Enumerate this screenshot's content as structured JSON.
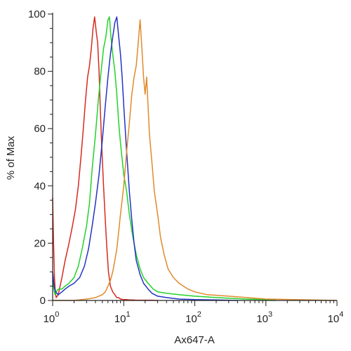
{
  "chart_data": {
    "type": "line",
    "title": "",
    "xlabel": "Ax647-A",
    "ylabel": "% of Max",
    "xscale": "log",
    "xlim": [
      1,
      10000
    ],
    "ylim": [
      0,
      100
    ],
    "grid": false,
    "legend": "none",
    "x_ticks": [
      {
        "base": "10",
        "exp": "0"
      },
      {
        "base": "10",
        "exp": "1"
      },
      {
        "base": "10",
        "exp": "2"
      },
      {
        "base": "10",
        "exp": "3"
      },
      {
        "base": "10",
        "exp": "4"
      }
    ],
    "y_ticks": [
      "0",
      "20",
      "40",
      "60",
      "80",
      "100"
    ],
    "series": [
      {
        "color": "#d62a1e",
        "x": [
          1.0,
          1.03,
          1.06,
          1.09,
          1.12,
          1.2,
          1.35,
          1.5,
          1.7,
          1.9,
          2.1,
          2.3,
          2.5,
          2.7,
          2.9,
          3.1,
          3.3,
          3.5,
          3.7,
          3.9,
          4.1,
          4.3,
          4.5,
          4.7,
          4.9,
          5.2,
          5.5,
          5.8,
          6.1,
          6.5,
          7.0,
          7.5,
          8.0,
          8.5,
          9.0,
          10.0,
          11.0,
          12.0,
          13.5,
          15.0,
          17.0,
          20.0,
          25.0,
          30.0
        ],
        "y": [
          36,
          20,
          8,
          3,
          1,
          2,
          8,
          14,
          20,
          26,
          32,
          40,
          50,
          60,
          70,
          78,
          82,
          88,
          95,
          99,
          94,
          90,
          80,
          66,
          54,
          40,
          28,
          18,
          10,
          5,
          3,
          2,
          1,
          1,
          0.5,
          0.3,
          0.3,
          0.2,
          0.2,
          0.1,
          0.1,
          0.1,
          0.1,
          0
        ]
      },
      {
        "color": "#22d22a",
        "x": [
          1.0,
          1.04,
          1.08,
          1.12,
          1.2,
          1.35,
          1.5,
          1.7,
          2.0,
          2.3,
          2.6,
          3.0,
          3.3,
          3.6,
          4.0,
          4.4,
          4.8,
          5.2,
          5.6,
          6.0,
          6.3,
          6.6,
          7.0,
          7.5,
          8.0,
          8.5,
          9.0,
          10.0,
          11.0,
          12.0,
          13.5,
          15.0,
          17.0,
          19.0,
          22.0,
          26.0,
          30.0,
          40.0,
          60.0,
          100.0,
          200.0,
          500.0,
          1000.0,
          1400.0
        ],
        "y": [
          7,
          4,
          2,
          3,
          4,
          4,
          5,
          6,
          8,
          12,
          18,
          26,
          34,
          46,
          58,
          70,
          80,
          88,
          92,
          98,
          99,
          92,
          86,
          80,
          72,
          62,
          55,
          44,
          38,
          30,
          22,
          16,
          11,
          8,
          6,
          4,
          3,
          2.5,
          2,
          1.5,
          1,
          0.5,
          0.3,
          0
        ]
      },
      {
        "color": "#2433c4",
        "x": [
          1.0,
          1.05,
          1.1,
          1.2,
          1.35,
          1.5,
          1.7,
          2.0,
          2.4,
          2.8,
          3.2,
          3.6,
          4.0,
          4.5,
          5.0,
          5.5,
          6.0,
          6.5,
          7.0,
          7.5,
          8.0,
          8.5,
          9.0,
          9.5,
          10.0,
          11.0,
          12.0,
          13.0,
          14.0,
          15.0,
          17.0,
          19.0,
          22.0,
          25.0,
          30.0,
          40.0,
          60.0,
          100.0,
          200.0,
          400.0
        ],
        "y": [
          10,
          5,
          3,
          2,
          3,
          4,
          5,
          6,
          8,
          12,
          18,
          26,
          34,
          44,
          56,
          68,
          78,
          86,
          92,
          97,
          99,
          92,
          86,
          78,
          68,
          52,
          38,
          28,
          20,
          14,
          9,
          6,
          4,
          2.5,
          1.5,
          1,
          0.5,
          0.3,
          0.2,
          0
        ]
      },
      {
        "color": "#e08a2c",
        "x": [
          1.0,
          2.0,
          3.0,
          4.0,
          5.0,
          5.5,
          6.0,
          6.5,
          7.0,
          7.5,
          8.0,
          8.5,
          9.0,
          10.0,
          11.0,
          12.0,
          13.0,
          14.0,
          15.0,
          16.0,
          17.0,
          18.0,
          19.0,
          20.0,
          21.0,
          22.0,
          23.0,
          25.0,
          27.0,
          30.0,
          33.0,
          37.0,
          42.0,
          50.0,
          60.0,
          80.0,
          100.0,
          150.0,
          300.0,
          1000.0,
          10000.0
        ],
        "y": [
          0,
          0,
          0.5,
          1,
          2,
          3,
          5,
          7,
          10,
          14,
          18,
          24,
          30,
          40,
          52,
          62,
          72,
          78,
          82,
          90,
          98,
          88,
          78,
          72,
          78,
          68,
          58,
          48,
          38,
          30,
          22,
          16,
          11,
          8,
          6,
          4,
          3,
          2,
          1.5,
          0.5,
          0
        ]
      }
    ]
  }
}
